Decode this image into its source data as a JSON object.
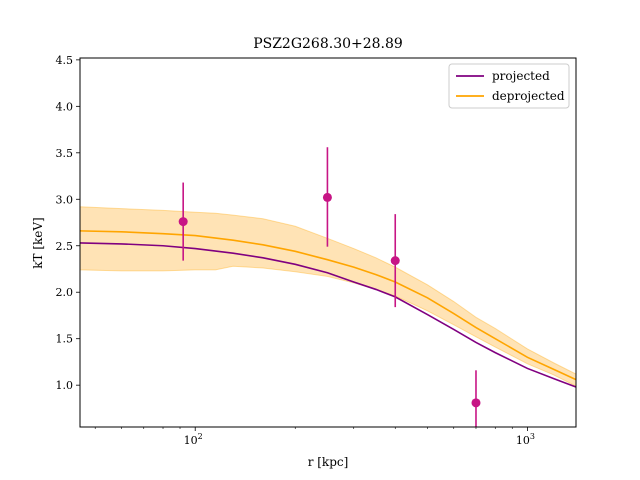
{
  "chart_data": {
    "type": "line",
    "title": "PSZ2G268.30+28.89",
    "xlabel": "r [kpc]",
    "ylabel": "kT [keV]",
    "xscale": "log",
    "xlim": [
      45,
      1400
    ],
    "ylim": [
      0.55,
      4.52
    ],
    "yticks": [
      1.0,
      1.5,
      2.0,
      2.5,
      3.0,
      3.5,
      4.0,
      4.5
    ],
    "ytick_labels": [
      "1.0",
      "1.5",
      "2.0",
      "2.5",
      "3.0",
      "3.5",
      "4.0",
      "4.5"
    ],
    "xticks": [
      {
        "value": 100,
        "base": "10",
        "exp": "2"
      },
      {
        "value": 1000,
        "base": "10",
        "exp": "3"
      }
    ],
    "grid": false,
    "legend_position": "top-right",
    "colors": {
      "projected": "#800080",
      "deprojected": "#FFA500",
      "band": "#FFDEA8",
      "points": "#C71585"
    },
    "series": [
      {
        "name": "projected",
        "kind": "line",
        "color": "#800080",
        "x": [
          45,
          60,
          80,
          100,
          130,
          160,
          200,
          250,
          300,
          350,
          400,
          500,
          600,
          700,
          800,
          1000,
          1200,
          1400
        ],
        "y": [
          2.53,
          2.52,
          2.5,
          2.47,
          2.42,
          2.37,
          2.3,
          2.21,
          2.11,
          2.03,
          1.95,
          1.76,
          1.6,
          1.46,
          1.35,
          1.18,
          1.07,
          0.98
        ]
      },
      {
        "name": "deprojected",
        "kind": "line",
        "color": "#FFA500",
        "x": [
          45,
          60,
          80,
          100,
          130,
          160,
          200,
          250,
          300,
          350,
          400,
          500,
          600,
          700,
          800,
          1000,
          1200,
          1400
        ],
        "y": [
          2.66,
          2.65,
          2.63,
          2.61,
          2.56,
          2.51,
          2.44,
          2.35,
          2.27,
          2.19,
          2.11,
          1.94,
          1.77,
          1.62,
          1.5,
          1.3,
          1.17,
          1.06
        ]
      },
      {
        "name": "",
        "kind": "band",
        "color": "#FFDEA8",
        "x": [
          45,
          60,
          80,
          100,
          115,
          130,
          160,
          200,
          250,
          300,
          350,
          400,
          500,
          600,
          700,
          800,
          1000,
          1200,
          1400
        ],
        "y_low": [
          2.24,
          2.23,
          2.23,
          2.24,
          2.24,
          2.28,
          2.26,
          2.22,
          2.17,
          2.1,
          2.03,
          1.96,
          1.8,
          1.65,
          1.52,
          1.41,
          1.23,
          1.11,
          0.99
        ],
        "y_high": [
          2.92,
          2.9,
          2.88,
          2.86,
          2.85,
          2.83,
          2.79,
          2.71,
          2.58,
          2.47,
          2.37,
          2.27,
          2.08,
          1.9,
          1.73,
          1.61,
          1.39,
          1.24,
          1.12
        ]
      },
      {
        "name": "",
        "kind": "errorbar",
        "color": "#C71585",
        "x": [
          92,
          250,
          400,
          700
        ],
        "y": [
          2.76,
          3.02,
          2.34,
          0.81
        ],
        "err_low": [
          0.42,
          0.53,
          0.5,
          0.3
        ],
        "err_high": [
          0.42,
          0.54,
          0.5,
          0.35
        ]
      }
    ]
  }
}
